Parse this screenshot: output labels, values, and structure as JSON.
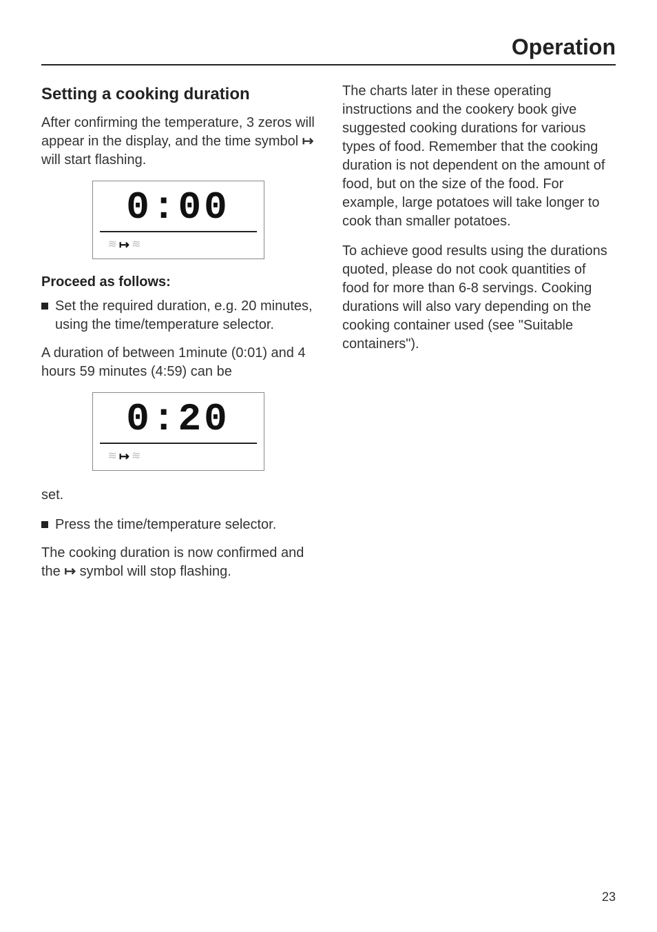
{
  "page": {
    "title": "Operation",
    "number": "23"
  },
  "left": {
    "heading": "Setting a cooking duration",
    "intro_pre": "After confirming the temperature, 3 zeros will appear in the display, and the time symbol ",
    "intro_symbol": "↦",
    "intro_post": " will start flashing.",
    "display1": {
      "digits": "0:00",
      "steam_left": "≋",
      "arrow": "↦",
      "steam_right": "≋"
    },
    "proceed_heading": "Proceed as follows:",
    "bullet1": "Set the required duration, e.g. 20 minutes, using the time/temperature selector.",
    "range_text": "A duration of between 1minute (0:01) and 4 hours 59 minutes (4:59) can be",
    "display2": {
      "digits": "0:20",
      "steam_left": "≋",
      "arrow": "↦",
      "steam_right": "≋"
    },
    "set_text": "set.",
    "bullet2": "Press the time/temperature selector.",
    "confirm_pre": "The cooking duration is now confirmed and the ",
    "confirm_symbol": "↦",
    "confirm_post": " symbol will stop flashing."
  },
  "right": {
    "para1": "The charts later in these operating instructions and the cookery book give suggested cooking durations for various types of food. Remember that the cooking duration is not dependent on the amount of food, but on the size of the food. For example, large potatoes will take longer to cook than smaller potatoes.",
    "para2": "To achieve good results using the durations quoted, please do not cook quantities of food for more than 6-8 servings. Cooking durations will also vary depending on the cooking container used (see \"Suitable containers\")."
  }
}
